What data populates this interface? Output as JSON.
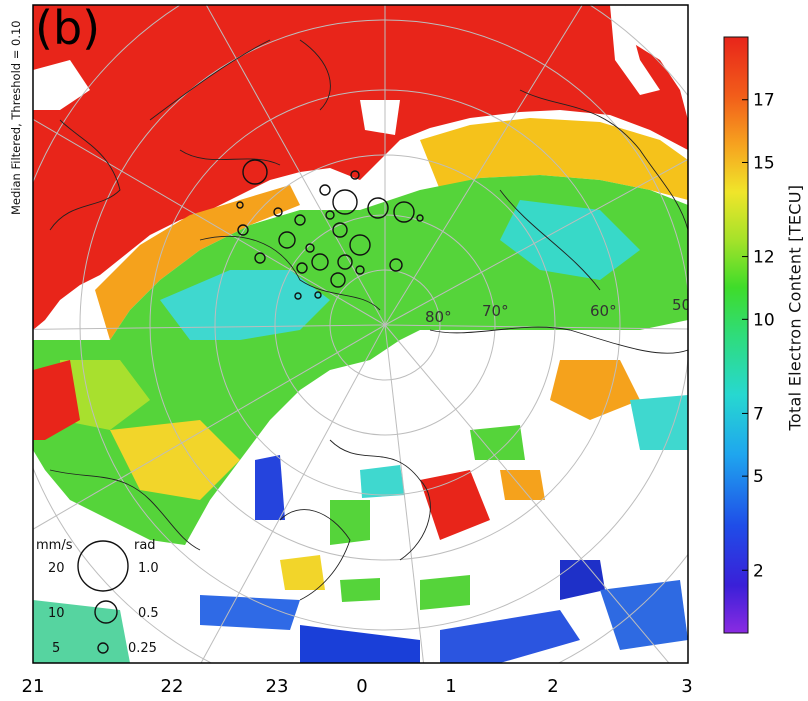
{
  "figure": {
    "panel_label": "(b)",
    "side_label": "Median Filtered, Threshold = 0.10",
    "colorbar": {
      "title": "Total Electron Content  [TECU]",
      "ticks": [
        "2",
        "5",
        "7",
        "10",
        "12",
        "15",
        "17"
      ],
      "range": [
        0,
        19
      ]
    },
    "x_axis_ticks": [
      "21",
      "22",
      "23",
      "0",
      "1",
      "2",
      "3"
    ],
    "latitude_labels": [
      "80°",
      "70°",
      "60°",
      "50°"
    ],
    "legend": {
      "left_unit": "mm/s",
      "right_unit": "rad",
      "rows": [
        {
          "speed": "20",
          "phase": "1.0"
        },
        {
          "speed": "10",
          "phase": "0.5"
        },
        {
          "speed": "5",
          "phase": "0.25"
        }
      ]
    },
    "colors": {
      "high": "#e8251a",
      "mid_high": "#f5c21b",
      "mid": "#4fd63a",
      "mid_low": "#2fd6d6",
      "low": "#2233dd",
      "lowest": "#7722cc"
    }
  }
}
